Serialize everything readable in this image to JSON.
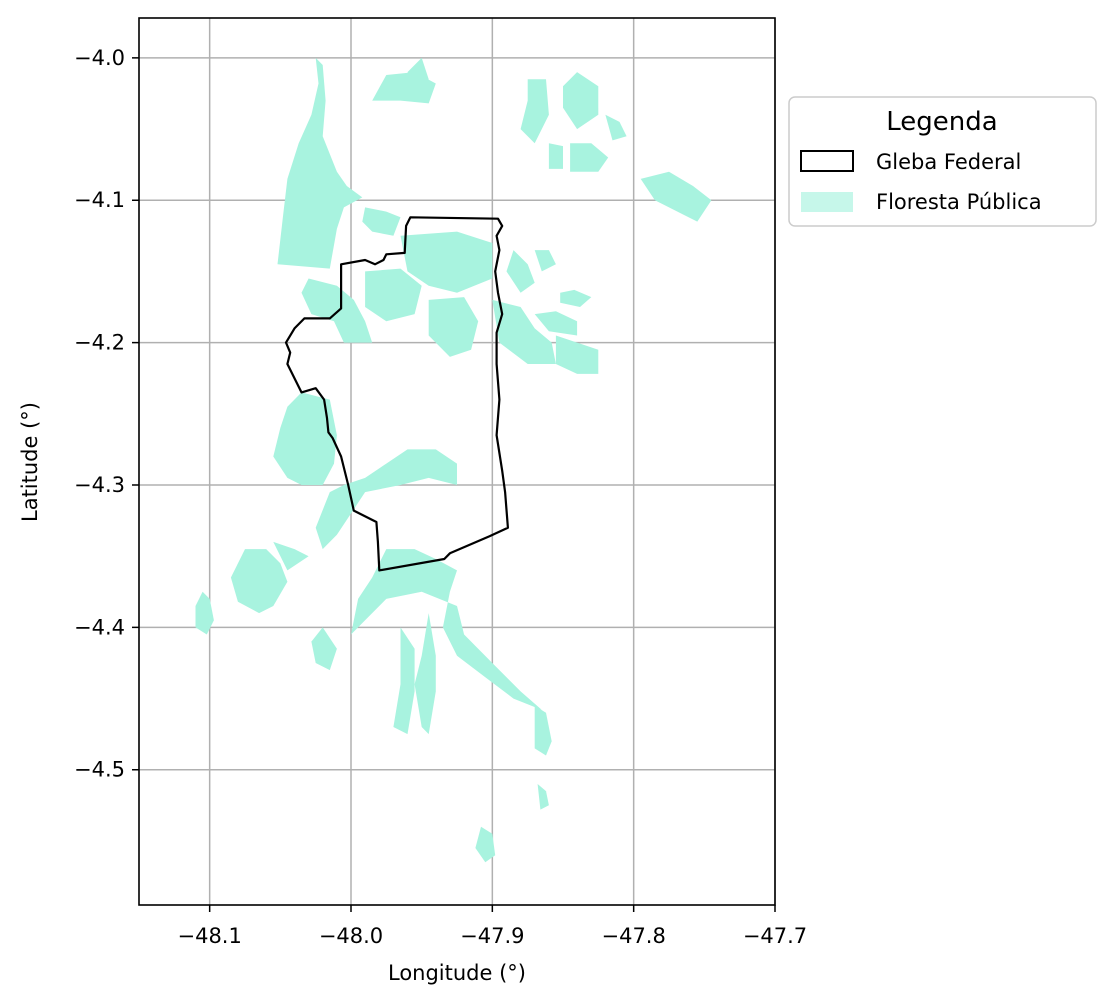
{
  "chart_data": {
    "type": "map",
    "xlabel": "Longitude (°)",
    "ylabel": "Latitude (°)",
    "xlim": [
      -48.15,
      -47.7
    ],
    "ylim": [
      -4.595,
      -3.972
    ],
    "xticks": [
      -48.1,
      -48.0,
      -47.9,
      -47.8,
      -47.7
    ],
    "xtick_labels": [
      "−48.1",
      "−48.0",
      "−47.9",
      "−47.8",
      "−47.7"
    ],
    "yticks": [
      -4.0,
      -4.1,
      -4.2,
      -4.3,
      -4.4,
      -4.5
    ],
    "ytick_labels": [
      "−4.0",
      "−4.1",
      "−4.2",
      "−4.3",
      "−4.4",
      "−4.5"
    ],
    "grid": true,
    "legend": {
      "title": "Legenda",
      "placement": "outside-upper-right",
      "entries": [
        {
          "label": "Gleba Federal",
          "style": "outline",
          "color": "#000000"
        },
        {
          "label": "Floresta Pública",
          "style": "fill",
          "color": "#a8f3df"
        }
      ]
    },
    "colors": {
      "forest": "#a8f3df",
      "boundary": "#000000",
      "grid": "#b0b0b0"
    },
    "gleba_federal": [
      [
        -47.958,
        -4.112
      ],
      [
        -47.896,
        -4.113
      ],
      [
        -47.893,
        -4.118
      ],
      [
        -47.897,
        -4.125
      ],
      [
        -47.895,
        -4.135
      ],
      [
        -47.898,
        -4.15
      ],
      [
        -47.896,
        -4.165
      ],
      [
        -47.893,
        -4.18
      ],
      [
        -47.897,
        -4.193
      ],
      [
        -47.897,
        -4.215
      ],
      [
        -47.895,
        -4.24
      ],
      [
        -47.897,
        -4.265
      ],
      [
        -47.893,
        -4.29
      ],
      [
        -47.891,
        -4.305
      ],
      [
        -47.889,
        -4.33
      ],
      [
        -47.902,
        -4.336
      ],
      [
        -47.93,
        -4.348
      ],
      [
        -47.934,
        -4.352
      ],
      [
        -47.98,
        -4.36
      ],
      [
        -47.981,
        -4.34
      ],
      [
        -47.982,
        -4.326
      ],
      [
        -47.998,
        -4.318
      ],
      [
        -48.002,
        -4.3
      ],
      [
        -48.007,
        -4.28
      ],
      [
        -48.013,
        -4.267
      ],
      [
        -48.016,
        -4.263
      ],
      [
        -48.017,
        -4.253
      ],
      [
        -48.019,
        -4.24
      ],
      [
        -48.025,
        -4.232
      ],
      [
        -48.035,
        -4.235
      ],
      [
        -48.045,
        -4.215
      ],
      [
        -48.043,
        -4.207
      ],
      [
        -48.046,
        -4.2
      ],
      [
        -48.04,
        -4.19
      ],
      [
        -48.033,
        -4.183
      ],
      [
        -48.015,
        -4.183
      ],
      [
        -48.007,
        -4.176
      ],
      [
        -48.007,
        -4.145
      ],
      [
        -47.99,
        -4.142
      ],
      [
        -47.983,
        -4.145
      ],
      [
        -47.977,
        -4.142
      ],
      [
        -47.975,
        -4.138
      ],
      [
        -47.962,
        -4.137
      ],
      [
        -47.961,
        -4.118
      ],
      [
        -47.958,
        -4.112
      ]
    ],
    "floresta_publica": [
      [
        [
          -48.025,
          -4.0
        ],
        [
          -48.023,
          -4.018
        ],
        [
          -48.028,
          -4.04
        ],
        [
          -48.037,
          -4.06
        ],
        [
          -48.045,
          -4.085
        ],
        [
          -48.048,
          -4.11
        ],
        [
          -48.052,
          -4.145
        ],
        [
          -48.015,
          -4.148
        ],
        [
          -48.01,
          -4.12
        ],
        [
          -48.005,
          -4.105
        ],
        [
          -47.992,
          -4.098
        ],
        [
          -48.003,
          -4.09
        ],
        [
          -48.01,
          -4.08
        ],
        [
          -48.02,
          -4.055
        ],
        [
          -48.018,
          -4.03
        ],
        [
          -48.02,
          -4.005
        ]
      ],
      [
        [
          -47.99,
          -4.105
        ],
        [
          -47.975,
          -4.108
        ],
        [
          -47.965,
          -4.112
        ],
        [
          -47.97,
          -4.125
        ],
        [
          -47.985,
          -4.122
        ],
        [
          -47.992,
          -4.115
        ]
      ],
      [
        [
          -47.965,
          -4.125
        ],
        [
          -47.925,
          -4.122
        ],
        [
          -47.9,
          -4.13
        ],
        [
          -47.9,
          -4.155
        ],
        [
          -47.925,
          -4.165
        ],
        [
          -47.945,
          -4.16
        ],
        [
          -47.96,
          -4.15
        ]
      ],
      [
        [
          -48.03,
          -4.155
        ],
        [
          -48.01,
          -4.16
        ],
        [
          -47.998,
          -4.17
        ],
        [
          -47.99,
          -4.185
        ],
        [
          -47.985,
          -4.2
        ],
        [
          -48.005,
          -4.2
        ],
        [
          -48.012,
          -4.185
        ],
        [
          -48.028,
          -4.18
        ],
        [
          -48.035,
          -4.165
        ]
      ],
      [
        [
          -47.99,
          -4.15
        ],
        [
          -47.965,
          -4.148
        ],
        [
          -47.95,
          -4.16
        ],
        [
          -47.955,
          -4.18
        ],
        [
          -47.975,
          -4.185
        ],
        [
          -47.99,
          -4.175
        ]
      ],
      [
        [
          -47.945,
          -4.17
        ],
        [
          -47.92,
          -4.168
        ],
        [
          -47.91,
          -4.185
        ],
        [
          -47.915,
          -4.205
        ],
        [
          -47.93,
          -4.21
        ],
        [
          -47.945,
          -4.195
        ]
      ],
      [
        [
          -47.9,
          -4.17
        ],
        [
          -47.88,
          -4.175
        ],
        [
          -47.87,
          -4.19
        ],
        [
          -47.858,
          -4.2
        ],
        [
          -47.855,
          -4.215
        ],
        [
          -47.875,
          -4.215
        ],
        [
          -47.895,
          -4.2
        ]
      ],
      [
        [
          -47.885,
          -4.135
        ],
        [
          -47.875,
          -4.145
        ],
        [
          -47.87,
          -4.158
        ],
        [
          -47.88,
          -4.165
        ],
        [
          -47.89,
          -4.15
        ]
      ],
      [
        [
          -48.015,
          -4.24
        ],
        [
          -48.035,
          -4.235
        ],
        [
          -48.045,
          -4.245
        ],
        [
          -48.05,
          -4.26
        ],
        [
          -48.055,
          -4.28
        ],
        [
          -48.045,
          -4.295
        ],
        [
          -48.035,
          -4.3
        ],
        [
          -48.02,
          -4.3
        ],
        [
          -48.012,
          -4.285
        ],
        [
          -48.01,
          -4.265
        ]
      ],
      [
        [
          -48.015,
          -4.305
        ],
        [
          -48.005,
          -4.3
        ],
        [
          -47.99,
          -4.295
        ],
        [
          -47.975,
          -4.285
        ],
        [
          -47.96,
          -4.275
        ],
        [
          -47.94,
          -4.275
        ],
        [
          -47.925,
          -4.285
        ],
        [
          -47.925,
          -4.3
        ],
        [
          -47.945,
          -4.295
        ],
        [
          -47.965,
          -4.3
        ],
        [
          -47.99,
          -4.305
        ],
        [
          -48.0,
          -4.32
        ],
        [
          -48.01,
          -4.335
        ],
        [
          -48.02,
          -4.345
        ],
        [
          -48.025,
          -4.33
        ]
      ],
      [
        [
          -47.975,
          -4.345
        ],
        [
          -47.955,
          -4.345
        ],
        [
          -47.94,
          -4.352
        ],
        [
          -47.925,
          -4.36
        ],
        [
          -47.93,
          -4.375
        ],
        [
          -47.935,
          -4.4
        ],
        [
          -47.925,
          -4.42
        ],
        [
          -47.905,
          -4.435
        ],
        [
          -47.885,
          -4.45
        ],
        [
          -47.865,
          -4.458
        ],
        [
          -47.88,
          -4.445
        ],
        [
          -47.9,
          -4.425
        ],
        [
          -47.92,
          -4.405
        ],
        [
          -47.925,
          -4.385
        ],
        [
          -47.95,
          -4.375
        ],
        [
          -47.975,
          -4.38
        ],
        [
          -47.99,
          -4.395
        ],
        [
          -48.0,
          -4.405
        ],
        [
          -47.995,
          -4.38
        ],
        [
          -47.985,
          -4.365
        ]
      ],
      [
        [
          -47.945,
          -4.39
        ],
        [
          -47.95,
          -4.42
        ],
        [
          -47.955,
          -4.44
        ],
        [
          -47.95,
          -4.47
        ],
        [
          -47.945,
          -4.475
        ],
        [
          -47.94,
          -4.445
        ],
        [
          -47.94,
          -4.42
        ]
      ],
      [
        [
          -47.965,
          -4.4
        ],
        [
          -47.965,
          -4.44
        ],
        [
          -47.97,
          -4.47
        ],
        [
          -47.96,
          -4.475
        ],
        [
          -47.955,
          -4.445
        ],
        [
          -47.955,
          -4.415
        ]
      ],
      [
        [
          -48.02,
          -4.4
        ],
        [
          -48.01,
          -4.415
        ],
        [
          -48.015,
          -4.43
        ],
        [
          -48.025,
          -4.425
        ],
        [
          -48.028,
          -4.41
        ]
      ],
      [
        [
          -48.075,
          -4.345
        ],
        [
          -48.06,
          -4.345
        ],
        [
          -48.05,
          -4.355
        ],
        [
          -48.045,
          -4.368
        ],
        [
          -48.055,
          -4.385
        ],
        [
          -48.065,
          -4.39
        ],
        [
          -48.08,
          -4.382
        ],
        [
          -48.085,
          -4.365
        ]
      ],
      [
        [
          -48.055,
          -4.34
        ],
        [
          -48.04,
          -4.345
        ],
        [
          -48.03,
          -4.35
        ],
        [
          -48.045,
          -4.36
        ]
      ],
      [
        [
          -48.105,
          -4.375
        ],
        [
          -48.1,
          -4.38
        ],
        [
          -48.097,
          -4.395
        ],
        [
          -48.102,
          -4.405
        ],
        [
          -48.11,
          -4.4
        ],
        [
          -48.11,
          -4.385
        ]
      ],
      [
        [
          -47.985,
          -4.03
        ],
        [
          -47.965,
          -4.03
        ],
        [
          -47.945,
          -4.032
        ],
        [
          -47.94,
          -4.018
        ],
        [
          -47.955,
          -4.01
        ],
        [
          -47.975,
          -4.012
        ]
      ],
      [
        [
          -47.96,
          -4.01
        ],
        [
          -47.95,
          -4.0
        ],
        [
          -47.945,
          -4.015
        ],
        [
          -47.955,
          -4.025
        ]
      ],
      [
        [
          -47.875,
          -4.015
        ],
        [
          -47.862,
          -4.015
        ],
        [
          -47.86,
          -4.04
        ],
        [
          -47.87,
          -4.06
        ],
        [
          -47.88,
          -4.05
        ],
        [
          -47.875,
          -4.03
        ]
      ],
      [
        [
          -47.85,
          -4.02
        ],
        [
          -47.84,
          -4.01
        ],
        [
          -47.825,
          -4.02
        ],
        [
          -47.825,
          -4.04
        ],
        [
          -47.84,
          -4.05
        ],
        [
          -47.85,
          -4.035
        ]
      ],
      [
        [
          -47.845,
          -4.06
        ],
        [
          -47.83,
          -4.06
        ],
        [
          -47.818,
          -4.07
        ],
        [
          -47.825,
          -4.08
        ],
        [
          -47.845,
          -4.08
        ]
      ],
      [
        [
          -47.86,
          -4.06
        ],
        [
          -47.85,
          -4.062
        ],
        [
          -47.85,
          -4.078
        ],
        [
          -47.86,
          -4.078
        ]
      ],
      [
        [
          -47.82,
          -4.04
        ],
        [
          -47.81,
          -4.045
        ],
        [
          -47.805,
          -4.055
        ],
        [
          -47.815,
          -4.058
        ]
      ],
      [
        [
          -47.795,
          -4.085
        ],
        [
          -47.775,
          -4.08
        ],
        [
          -47.758,
          -4.09
        ],
        [
          -47.745,
          -4.1
        ],
        [
          -47.755,
          -4.115
        ],
        [
          -47.765,
          -4.11
        ],
        [
          -47.785,
          -4.1
        ]
      ],
      [
        [
          -47.87,
          -4.18
        ],
        [
          -47.855,
          -4.178
        ],
        [
          -47.84,
          -4.185
        ],
        [
          -47.84,
          -4.195
        ],
        [
          -47.86,
          -4.192
        ]
      ],
      [
        [
          -47.855,
          -4.195
        ],
        [
          -47.84,
          -4.2
        ],
        [
          -47.825,
          -4.205
        ],
        [
          -47.825,
          -4.222
        ],
        [
          -47.84,
          -4.222
        ],
        [
          -47.855,
          -4.215
        ]
      ],
      [
        [
          -47.852,
          -4.165
        ],
        [
          -47.842,
          -4.163
        ],
        [
          -47.83,
          -4.168
        ],
        [
          -47.838,
          -4.175
        ],
        [
          -47.852,
          -4.172
        ]
      ],
      [
        [
          -47.87,
          -4.135
        ],
        [
          -47.86,
          -4.135
        ],
        [
          -47.855,
          -4.145
        ],
        [
          -47.865,
          -4.15
        ]
      ],
      [
        [
          -47.87,
          -4.455
        ],
        [
          -47.862,
          -4.46
        ],
        [
          -47.858,
          -4.48
        ],
        [
          -47.862,
          -4.49
        ],
        [
          -47.87,
          -4.485
        ]
      ],
      [
        [
          -47.908,
          -4.54
        ],
        [
          -47.9,
          -4.545
        ],
        [
          -47.898,
          -4.56
        ],
        [
          -47.905,
          -4.565
        ],
        [
          -47.912,
          -4.555
        ]
      ],
      [
        [
          -47.868,
          -4.51
        ],
        [
          -47.862,
          -4.515
        ],
        [
          -47.86,
          -4.525
        ],
        [
          -47.866,
          -4.528
        ]
      ]
    ]
  }
}
